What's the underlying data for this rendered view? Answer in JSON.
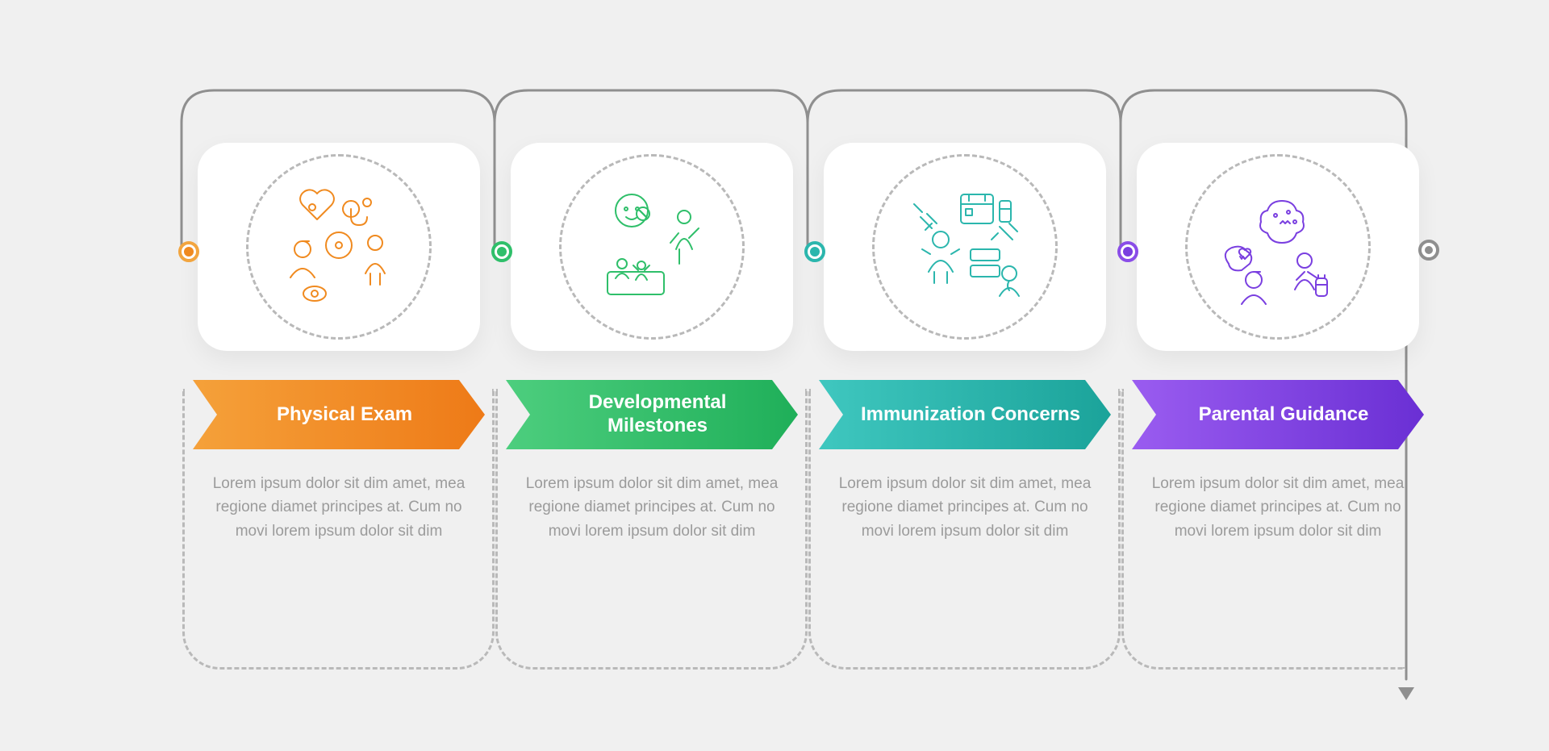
{
  "infographic": {
    "type": "infographic",
    "background_color": "#f0f0f0",
    "card_background": "#ffffff",
    "card_border_radius": 36,
    "connector_color": "#8f8f8f",
    "dashed_border_color": "#b9b9b9",
    "desc_text_color": "#9b9b9b",
    "desc_font_size": 19,
    "arrow_text_color": "#ffffff",
    "arrow_font_size": 24,
    "arrow_font_weight": 700,
    "steps": [
      {
        "id": "physical-exam",
        "title": "Physical Exam",
        "description": "Lorem ipsum dolor sit dim amet, mea regione diamet principes at. Cum no movi lorem ipsum dolor sit dim",
        "color_main": "#f08a1f",
        "gradient_start": "#f5a13a",
        "gradient_end": "#ee7a17",
        "dot_border_color": "#f2a53f",
        "icon_name": "physical-exam-icon"
      },
      {
        "id": "developmental-milestones",
        "title": "Developmental Milestones",
        "description": "Lorem ipsum dolor sit dim amet, mea regione diamet principes at. Cum no movi lorem ipsum dolor sit dim",
        "color_main": "#2fbf6a",
        "gradient_start": "#4dce7e",
        "gradient_end": "#1faf59",
        "dot_border_color": "#2fbf6a",
        "icon_name": "milestones-icon"
      },
      {
        "id": "immunization-concerns",
        "title": "Immunization Concerns",
        "description": "Lorem ipsum dolor sit dim amet, mea regione diamet principes at. Cum no movi lorem ipsum dolor sit dim",
        "color_main": "#2bb6ad",
        "gradient_start": "#3fc7bf",
        "gradient_end": "#1ba39a",
        "dot_border_color": "#2bb6ad",
        "icon_name": "immunization-icon"
      },
      {
        "id": "parental-guidance",
        "title": "Parental Guidance",
        "description": "Lorem ipsum dolor sit dim amet, mea regione diamet principes at. Cum no movi lorem ipsum dolor sit dim",
        "color_main": "#7a3fe0",
        "gradient_start": "#9a5cf0",
        "gradient_end": "#6a2fd4",
        "dot_border_color": "#8a4de8",
        "icon_name": "parental-guidance-icon"
      }
    ]
  }
}
